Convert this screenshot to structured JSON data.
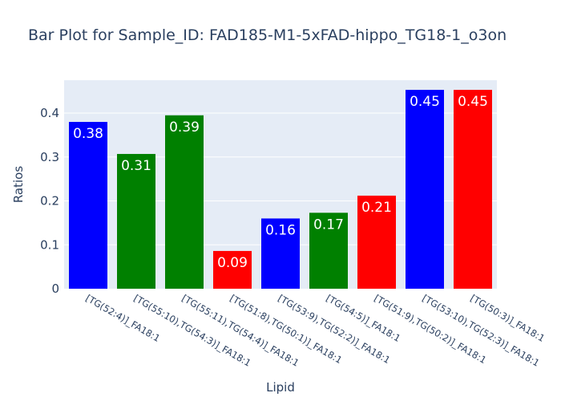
{
  "chart_data": {
    "type": "bar",
    "title": "Bar Plot for Sample_ID: FAD185-M1-5xFAD-hippo_TG18-1_o3on",
    "xlabel": "Lipid",
    "ylabel": "Ratios",
    "ylim": [
      0,
      0.475
    ],
    "yticks": [
      0,
      0.1,
      0.2,
      0.3,
      0.4
    ],
    "ytick_labels": [
      "0",
      "0.1",
      "0.2",
      "0.3",
      "0.4"
    ],
    "grid": true,
    "plot_background": "#e5ecf6",
    "categories": [
      "[TG(52:4)]_FA18:1",
      "[TG(55:10),TG(54:3)]_FA18:1",
      "[TG(55:11),TG(54:4)]_FA18:1",
      "[TG(51:8),TG(50:1)]_FA18:1",
      "[TG(53:9),TG(52:2)]_FA18:1",
      "[TG(54:5)]_FA18:1",
      "[TG(51:9),TG(50:2)]_FA18:1",
      "[TG(53:10),TG(52:3)]_FA18:1",
      "[TG(50:3)]_FA18:1"
    ],
    "values": [
      0.38,
      0.307,
      0.395,
      0.086,
      0.16,
      0.173,
      0.212,
      0.453,
      0.453
    ],
    "labels": [
      "0.38",
      "0.31",
      "0.39",
      "0.09",
      "0.16",
      "0.17",
      "0.21",
      "0.45",
      "0.45"
    ],
    "colors": [
      "#0000ff",
      "#008000",
      "#008000",
      "#ff0000",
      "#0000ff",
      "#008000",
      "#ff0000",
      "#0000ff",
      "#ff0000"
    ]
  }
}
